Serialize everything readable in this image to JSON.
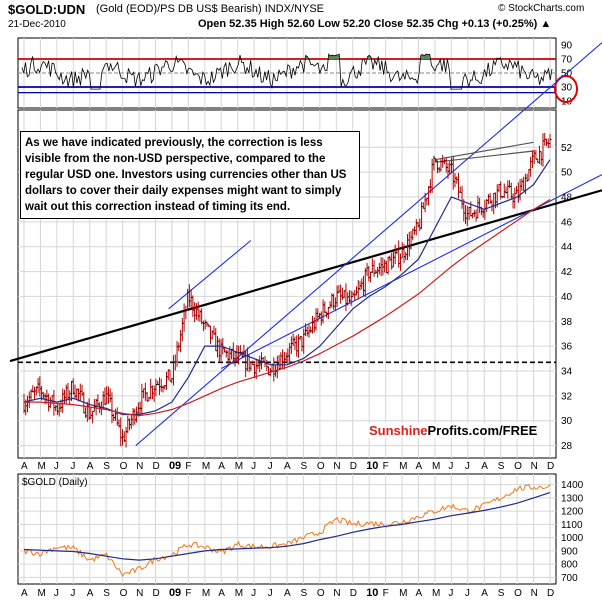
{
  "header": {
    "symbol": "$GOLD:UDN",
    "description": "(Gold (EOD)/PS DB US$ Bearish) INDX/NYSE",
    "source": "© StockCharts.com",
    "date": "21-Dec-2010",
    "quote": "Open 52.35  High 52.60  Low 52.20  Close 52.35  Chg +0.13 (+0.25%) ▲"
  },
  "annotation": {
    "text": "As we have indicated previously, the correction is less visible from the non-USD perspective, compared to the regular USD one. Investors using currencies other than US dollars to cover their daily expenses might want to simply wait out this correction instead of timing its end."
  },
  "branding": {
    "part1": "Sunshine",
    "part2": "Profits.com/FREE"
  },
  "colors": {
    "price": "#b00000",
    "ma_blue": "#1f2a8c",
    "ma_red": "#c82020",
    "channel": "#2030e0",
    "trend": "#000000",
    "rsi_line": "#000000",
    "rsi_fill": "#5a8a5a",
    "gold_daily": "#f07818",
    "gold_ma": "#1f2a8c",
    "guide_red": "#d00000",
    "guide_blue": "#0000b0",
    "grid": "#d6d6d6"
  },
  "chart_data": [
    {
      "type": "line",
      "panel": "RSI",
      "y_tick_labels": [
        "90",
        "70",
        "50",
        "30",
        "10"
      ],
      "y_ticks": [
        90,
        70,
        50,
        30,
        10
      ],
      "ylim": [
        0,
        100
      ],
      "overbought": 70,
      "oversold": 30,
      "circled_label": "30",
      "grid": true
    },
    {
      "type": "line",
      "panel": "$GOLD:UDN price",
      "ylim": [
        27,
        55
      ],
      "y_ticks": [
        28,
        30,
        32,
        34,
        36,
        38,
        40,
        42,
        44,
        46,
        48,
        50,
        52
      ],
      "y_tick_labels": [
        "28",
        "30",
        "32",
        "34",
        "36",
        "38",
        "40",
        "42",
        "44",
        "46",
        "48",
        "50",
        "52"
      ],
      "x_tick_labels": [
        "A",
        "M",
        "J",
        "J",
        "A",
        "S",
        "O",
        "N",
        "D",
        "09",
        "F",
        "M",
        "A",
        "M",
        "J",
        "J",
        "A",
        "S",
        "O",
        "N",
        "D",
        "10",
        "F",
        "M",
        "A",
        "M",
        "J",
        "J",
        "A",
        "S",
        "O",
        "N",
        "D"
      ],
      "series": [
        {
          "values": [
            31.5,
            32.5,
            31.0,
            32.8,
            30.5,
            32.0,
            28.5,
            31.5,
            33.0,
            33.5,
            40.0,
            37.5,
            35.5,
            35.0,
            34.5,
            34.2,
            35.5,
            36.5,
            38.5,
            40.0,
            39.5,
            42.0,
            42.5,
            43.5,
            45.5,
            51.0,
            50.0,
            46.5,
            47.5,
            48.5,
            48.0,
            51.0,
            52.5
          ]
        },
        {
          "values": [
            31.5,
            31.8,
            31.5,
            31.8,
            31.3,
            31.0,
            30.5,
            30.5,
            30.8,
            31.5,
            33.5,
            36.0,
            36.0,
            35.5,
            35.0,
            34.5,
            34.5,
            35.0,
            36.0,
            37.5,
            39.0,
            40.0,
            40.8,
            41.8,
            43.0,
            45.5,
            48.0,
            47.5,
            47.0,
            47.5,
            48.0,
            49.0,
            51.0
          ]
        },
        {
          "values": [
            31.5,
            31.5,
            31.4,
            31.3,
            31.1,
            30.9,
            30.6,
            30.4,
            30.6,
            30.9,
            31.4,
            32.0,
            32.6,
            33.1,
            33.5,
            33.9,
            34.3,
            34.8,
            35.4,
            36.1,
            36.8,
            37.6,
            38.4,
            39.3,
            40.2,
            41.3,
            42.4,
            43.4,
            44.3,
            45.2,
            46.1,
            47.0,
            47.8
          ]
        }
      ],
      "horizontal_line": 34.7,
      "grid": true
    },
    {
      "type": "line",
      "panel": "$GOLD (Daily)",
      "title": "$GOLD (Daily)",
      "ylim": [
        650,
        1480
      ],
      "y_ticks": [
        700,
        800,
        900,
        1000,
        1100,
        1200,
        1300,
        1400
      ],
      "y_tick_labels": [
        "700",
        "800",
        "900",
        "1000",
        "1100",
        "1200",
        "1300",
        "1400"
      ],
      "x_tick_labels": [
        "A",
        "M",
        "J",
        "J",
        "A",
        "S",
        "O",
        "N",
        "D",
        "09",
        "F",
        "M",
        "A",
        "M",
        "J",
        "J",
        "A",
        "S",
        "O",
        "N",
        "D",
        "10",
        "F",
        "M",
        "A",
        "M",
        "J",
        "J",
        "A",
        "S",
        "O",
        "N",
        "D"
      ],
      "series": [
        {
          "values": [
            900,
            880,
            930,
            920,
            830,
            870,
            720,
            760,
            840,
            870,
            950,
            930,
            890,
            950,
            930,
            935,
            950,
            1000,
            1040,
            1140,
            1100,
            1110,
            1100,
            1120,
            1160,
            1200,
            1240,
            1200,
            1240,
            1300,
            1370,
            1380,
            1385
          ]
        },
        {
          "values": [
            910,
            905,
            900,
            895,
            880,
            860,
            840,
            830,
            840,
            860,
            880,
            900,
            910,
            915,
            920,
            925,
            935,
            955,
            985,
            1010,
            1040,
            1065,
            1085,
            1100,
            1120,
            1140,
            1165,
            1185,
            1205,
            1230,
            1260,
            1300,
            1340
          ]
        }
      ],
      "grid": true
    }
  ]
}
